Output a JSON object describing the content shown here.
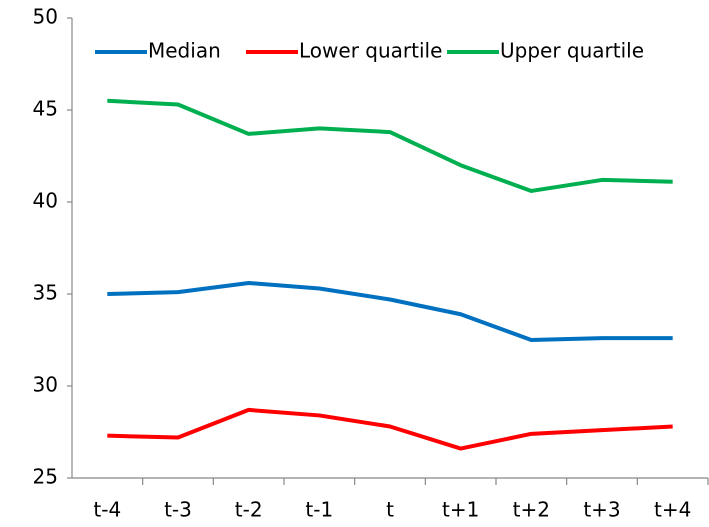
{
  "chart_data": {
    "type": "line",
    "categories": [
      "t-4",
      "t-3",
      "t-2",
      "t-1",
      "t",
      "t+1",
      "t+2",
      "t+3",
      "t+4"
    ],
    "series": [
      {
        "name": "Median",
        "color": "#0070c0",
        "values": [
          35.0,
          35.1,
          35.6,
          35.3,
          34.7,
          33.9,
          32.5,
          32.6,
          32.6
        ]
      },
      {
        "name": "Lower quartile",
        "color": "#ff0000",
        "values": [
          27.3,
          27.2,
          28.7,
          28.4,
          27.8,
          26.6,
          27.4,
          27.6,
          27.8
        ]
      },
      {
        "name": "Upper quartile",
        "color": "#00b050",
        "values": [
          45.5,
          45.3,
          43.7,
          44.0,
          43.8,
          42.0,
          40.6,
          41.2,
          41.1
        ]
      }
    ],
    "ylim": [
      25,
      50
    ],
    "yticks": [
      25,
      30,
      35,
      40,
      45,
      50
    ],
    "grid": false,
    "legend": "top"
  }
}
